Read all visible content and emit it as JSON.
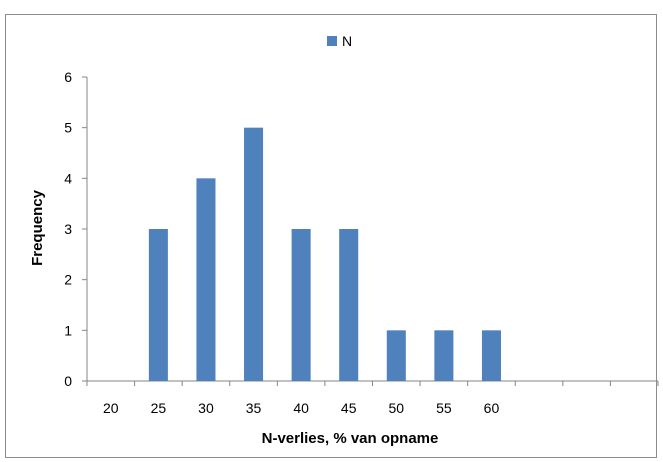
{
  "chart_data": {
    "type": "bar",
    "title": "",
    "xlabel": "N-verlies, % van opname",
    "ylabel": "Frequency",
    "categories": [
      "20",
      "25",
      "30",
      "35",
      "40",
      "45",
      "50",
      "55",
      "60",
      "",
      "",
      ""
    ],
    "series": [
      {
        "name": "N",
        "values": [
          0,
          3,
          4,
          5,
          3,
          3,
          1,
          1,
          1,
          0,
          0,
          0
        ],
        "color": "#4f81bd"
      }
    ],
    "ylim": [
      0,
      6
    ],
    "yticks": [
      0,
      1,
      2,
      3,
      4,
      5,
      6
    ],
    "grid": false,
    "legend": "top-center"
  }
}
